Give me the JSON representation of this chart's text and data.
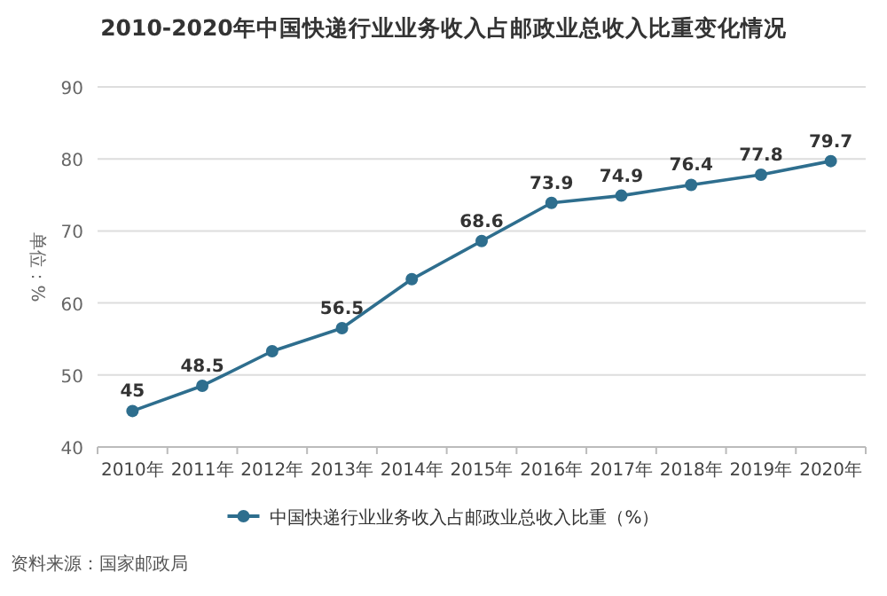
{
  "chart_data": {
    "type": "line",
    "title": "2010-2020年中国快递行业业务收入占邮政业总收入比重变化情况",
    "ylabel": "单位：%",
    "categories": [
      "2010年",
      "2011年",
      "2012年",
      "2013年",
      "2014年",
      "2015年",
      "2016年",
      "2017年",
      "2018年",
      "2019年",
      "2020年"
    ],
    "series": [
      {
        "name": "中国快递行业业务收入占邮政业总收入比重（%）",
        "color": "#2e6e8e",
        "values": [
          45,
          48.5,
          53.3,
          56.5,
          63.3,
          68.6,
          73.9,
          74.9,
          76.4,
          77.8,
          79.7
        ],
        "value_labels": [
          "45",
          "48.5",
          null,
          "56.5",
          null,
          "68.6",
          "73.9",
          "74.9",
          "76.4",
          "77.8",
          "79.7"
        ]
      }
    ],
    "ylim": [
      40,
      90
    ],
    "yticks": [
      40,
      50,
      60,
      70,
      80,
      90
    ],
    "grid": "y",
    "legend": "bottom",
    "marker": "circle",
    "line_style": "solid",
    "annotations": [
      "资料来源：国家邮政局"
    ]
  }
}
